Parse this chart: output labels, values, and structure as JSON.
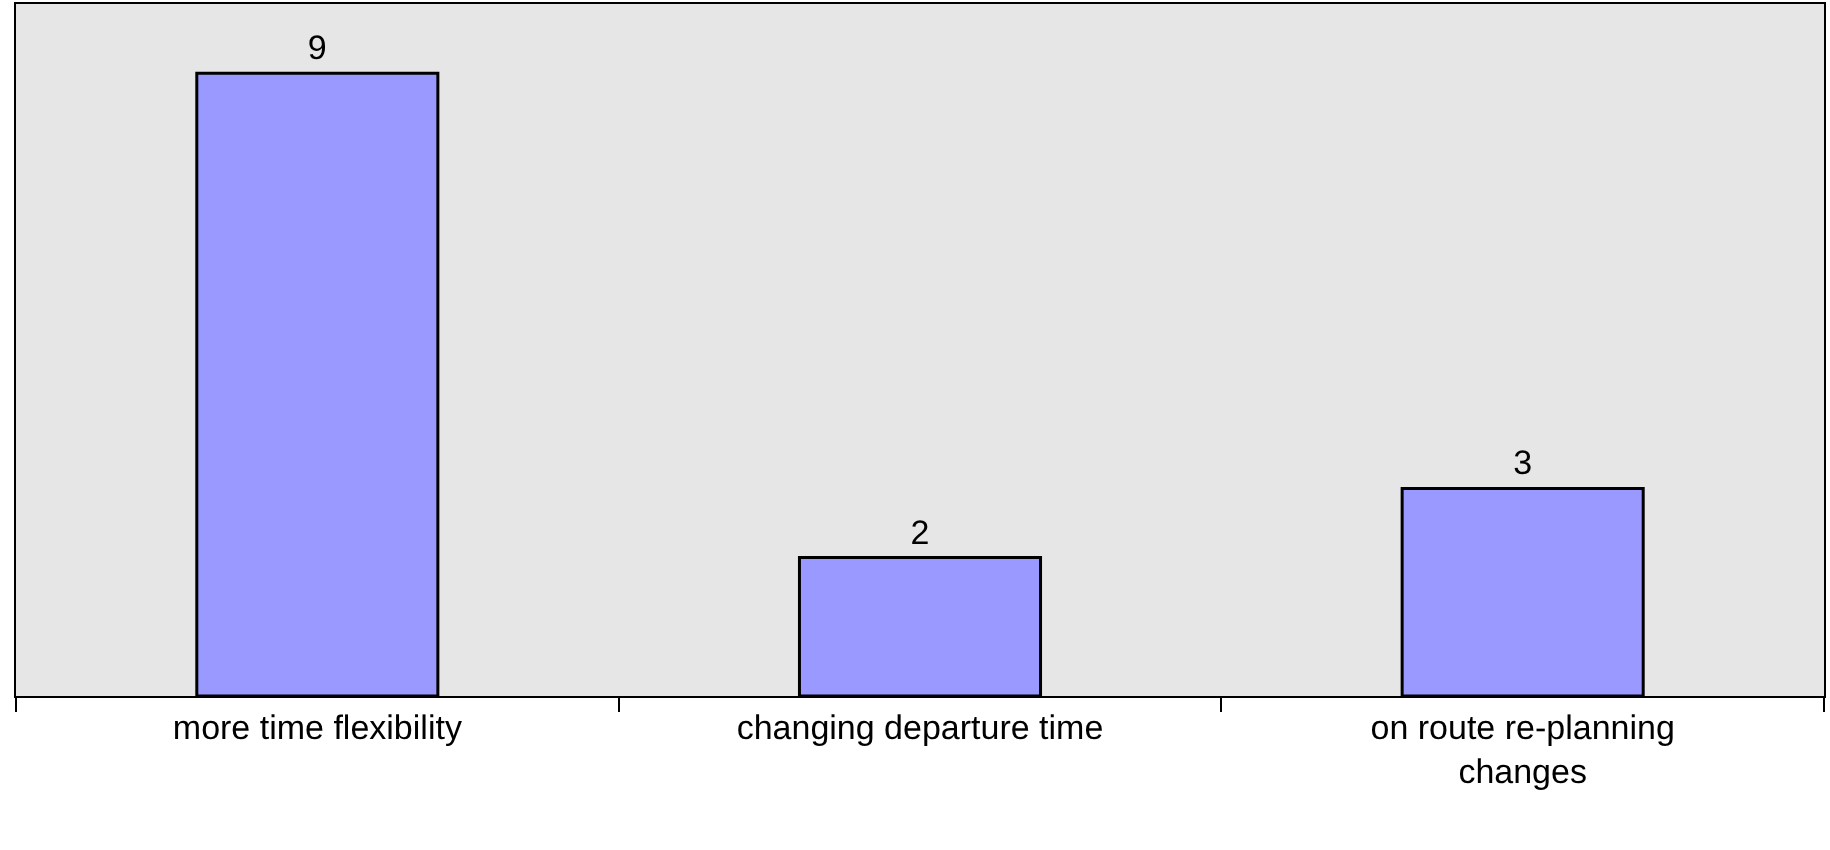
{
  "chart_data": {
    "type": "bar",
    "categories": [
      "more time flexibility",
      "changing departure time",
      "on route re-planning changes"
    ],
    "values": [
      9,
      2,
      3
    ],
    "color": "#9999ff",
    "ylim": [
      0,
      10
    ],
    "tick_labels": "x",
    "data_labels": true
  }
}
